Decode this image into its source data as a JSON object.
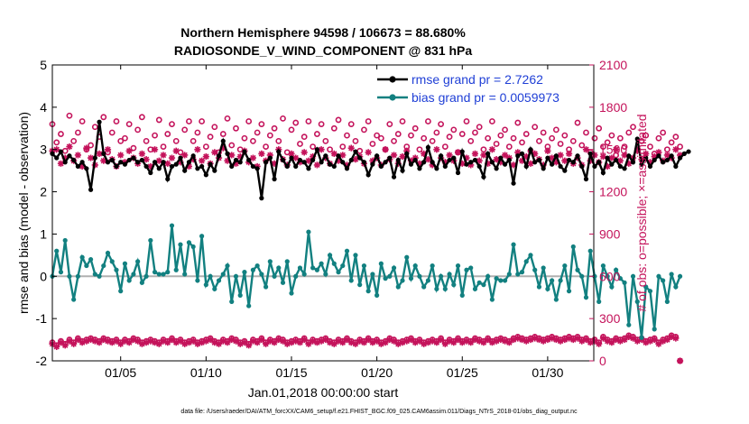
{
  "chart_data": {
    "type": "line",
    "title": "Northern Hemisphere 94598 / 106673 = 88.680%",
    "subtitle": "RADIOSONDE_V_WIND_COMPONENT @ 831 hPa",
    "xlabel": "Jan.01,2018 00:00:00 start",
    "ylabel": "rmse and bias (model - observation)",
    "ylabel_right": "# of obs: o=possible; ×=assimilated",
    "xlim": [
      1,
      32.7
    ],
    "ylim": [
      -2,
      5
    ],
    "ylim_right": [
      0,
      2100
    ],
    "x_ticks": [
      5,
      10,
      15,
      20,
      25,
      30
    ],
    "x_tick_labels": [
      "01/05",
      "01/10",
      "01/15",
      "01/20",
      "01/25",
      "01/30"
    ],
    "y_ticks": [
      -2,
      -1,
      0,
      1,
      2,
      3,
      4,
      5
    ],
    "y_tick_labels": [
      "-2",
      "-1",
      "0",
      "1",
      "2",
      "3",
      "4",
      "5"
    ],
    "y_right_ticks": [
      0,
      300,
      600,
      900,
      1200,
      1500,
      1800,
      2100
    ],
    "y_right_tick_labels": [
      "0",
      "300",
      "600",
      "900",
      "1200",
      "1500",
      "1800",
      "2100"
    ],
    "grid": false,
    "legend_position": "top-right",
    "legend": [
      "rmse grand pr = 2.7262",
      "bias grand pr = 0.0059973"
    ],
    "colors": {
      "rmse": "#000000",
      "bias": "#128080",
      "obs": "#c4135b",
      "zero_line": "#b0b0b0"
    },
    "x_start": 1.0,
    "x_step": 0.25,
    "series": [
      {
        "name": "rmse",
        "axis": "left",
        "values": [
          2.9,
          2.8,
          2.95,
          2.7,
          2.85,
          2.75,
          2.6,
          2.7,
          2.55,
          2.05,
          2.8,
          3.65,
          2.9,
          2.7,
          2.75,
          2.6,
          2.7,
          2.65,
          2.75,
          2.8,
          2.7,
          2.75,
          2.6,
          2.45,
          2.7,
          2.55,
          2.7,
          2.3,
          2.6,
          2.65,
          2.8,
          2.5,
          2.7,
          2.85,
          2.55,
          2.6,
          2.4,
          2.65,
          2.5,
          2.85,
          3.2,
          2.9,
          2.6,
          2.75,
          2.7,
          2.95,
          2.75,
          2.6,
          2.55,
          1.85,
          2.7,
          2.8,
          2.3,
          2.95,
          2.75,
          2.6,
          2.8,
          2.6,
          2.75,
          2.7,
          2.55,
          2.75,
          3.0,
          2.7,
          2.85,
          2.65,
          2.6,
          2.85,
          2.7,
          2.55,
          2.75,
          2.95,
          2.8,
          2.7,
          2.4,
          2.65,
          2.85,
          2.6,
          2.7,
          2.8,
          2.35,
          2.75,
          2.5,
          2.9,
          2.65,
          2.75,
          2.55,
          2.7,
          3.05,
          2.7,
          2.55,
          2.85,
          2.6,
          2.75,
          2.8,
          2.45,
          2.95,
          2.65,
          2.7,
          2.75,
          2.6,
          2.35,
          2.9,
          2.7,
          2.55,
          2.8,
          2.65,
          2.75,
          2.2,
          2.85,
          2.9,
          2.6,
          3.0,
          2.7,
          2.75,
          2.55,
          2.8,
          2.65,
          2.85,
          2.6,
          2.5,
          2.75,
          2.7,
          2.85,
          2.6,
          2.3,
          2.9,
          2.6,
          2.7,
          2.45,
          2.8,
          2.65,
          2.75,
          2.6,
          2.55,
          2.85,
          2.7,
          3.25,
          2.65,
          2.8,
          2.6,
          2.75,
          2.85,
          2.7,
          2.75,
          2.85,
          2.6,
          2.8,
          2.9,
          2.95
        ]
      },
      {
        "name": "bias",
        "axis": "left",
        "values": [
          0.0,
          0.6,
          0.1,
          0.85,
          0.0,
          -0.55,
          0.0,
          0.45,
          0.25,
          0.4,
          0.05,
          0.0,
          0.25,
          0.55,
          0.35,
          0.15,
          -0.35,
          0.3,
          -0.1,
          0.05,
          0.35,
          -0.15,
          0.0,
          0.85,
          0.1,
          0.05,
          0.05,
          0.1,
          1.2,
          0.15,
          0.75,
          0.05,
          0.8,
          0.7,
          -0.1,
          0.95,
          -0.2,
          0.0,
          -0.3,
          -0.1,
          0.05,
          0.25,
          -0.6,
          0.0,
          -0.45,
          0.1,
          -0.7,
          0.15,
          0.25,
          0.05,
          -0.25,
          0.35,
          0.0,
          0.2,
          -0.15,
          0.35,
          -0.4,
          0.0,
          0.2,
          0.05,
          1.05,
          0.2,
          0.15,
          0.3,
          0.05,
          0.5,
          0.3,
          0.1,
          0.25,
          0.6,
          -0.1,
          0.5,
          -0.2,
          0.25,
          -0.35,
          0.05,
          -0.45,
          0.3,
          -0.05,
          0.0,
          0.2,
          -0.25,
          -0.1,
          0.45,
          -0.05,
          0.25,
          0.0,
          -0.25,
          -0.1,
          0.25,
          -0.3,
          0.0,
          -0.3,
          0.05,
          -0.2,
          0.25,
          -0.45,
          0.15,
          0.2,
          -0.3,
          -0.15,
          -0.2,
          0.0,
          -0.55,
          -0.05,
          -0.1,
          -0.1,
          0.05,
          0.75,
          0.05,
          0.1,
          0.35,
          0.5,
          0.15,
          -0.25,
          0.2,
          -0.3,
          -0.1,
          -0.55,
          -0.1,
          0.25,
          -0.35,
          0.7,
          0.15,
          0.0,
          -0.5,
          0.6,
          0.0,
          -0.6,
          0.25,
          0.0,
          -0.25,
          0.15,
          -0.05,
          -0.15,
          -1.15,
          0.0,
          -0.6,
          -1.45,
          -0.25,
          -0.35,
          -1.25,
          0.0,
          -0.1,
          -0.6,
          0.05,
          -0.25,
          0.0
        ]
      },
      {
        "name": "possible obs",
        "axis": "right",
        "marker": "o",
        "values": [
          1680,
          1550,
          1610,
          1490,
          1740,
          1560,
          1620,
          1700,
          1500,
          1530,
          1660,
          1590,
          1730,
          1480,
          1620,
          1700,
          1560,
          1580,
          1680,
          1510,
          1640,
          1730,
          1560,
          1500,
          1600,
          1710,
          1520,
          1610,
          1680,
          1560,
          1480,
          1640,
          1700,
          1560,
          1620,
          1700,
          1520,
          1590,
          1660,
          1480,
          1610,
          1720,
          1530,
          1650,
          1500,
          1580,
          1700,
          1560,
          1620,
          1680,
          1520,
          1600,
          1650,
          1560,
          1720,
          1480,
          1640,
          1690,
          1540,
          1590,
          1700,
          1520,
          1610,
          1680,
          1560,
          1500,
          1650,
          1710,
          1520,
          1600,
          1680,
          1560,
          1490,
          1640,
          1700,
          1540,
          1600,
          1580,
          1500,
          1680,
          1560,
          1610,
          1700,
          1520,
          1600,
          1650,
          1500,
          1580,
          1700,
          1560,
          1620,
          1680,
          1520,
          1590,
          1640,
          1480,
          1610,
          1700,
          1560,
          1620,
          1660,
          1500,
          1580,
          1700,
          1540,
          1600,
          1640,
          1520,
          1580,
          1690,
          1550,
          1610,
          1490,
          1660,
          1560,
          1620,
          1520,
          1580,
          1640,
          1540,
          1600,
          1500,
          1560,
          1690,
          1530,
          1620,
          1480,
          1580,
          1650,
          1520,
          1550,
          1600,
          1460,
          1580,
          1520,
          1620,
          1660,
          1500,
          1560,
          1600,
          1520,
          1470,
          1580,
          1620,
          1500,
          1550,
          1590,
          1520
        ]
      },
      {
        "name": "assimilated obs",
        "axis": "right",
        "marker": "*",
        "values": [
          1490,
          1500,
          1400,
          1440,
          1520,
          1420,
          1460,
          1380,
          1510,
          1440,
          1390,
          1470,
          1420,
          1500,
          1430,
          1380,
          1460,
          1410,
          1490,
          1440,
          1400,
          1470,
          1430,
          1380,
          1500,
          1420,
          1460,
          1400,
          1440,
          1490,
          1410,
          1460,
          1380,
          1430,
          1500,
          1420,
          1450,
          1400,
          1480,
          1440,
          1510,
          1420,
          1460,
          1400,
          1450,
          1490,
          1410,
          1440,
          1380,
          1470,
          1420,
          1460,
          1400,
          1500,
          1430,
          1390,
          1470,
          1440,
          1410,
          1480,
          1420,
          1450,
          1390,
          1500,
          1440,
          1400,
          1470,
          1420,
          1460,
          1390,
          1510,
          1430,
          1450,
          1400,
          1480,
          1420,
          1440,
          1390,
          1500,
          1430,
          1460,
          1400,
          1450,
          1490,
          1420,
          1440,
          1400,
          1470,
          1430,
          1390,
          1500,
          1440,
          1410,
          1460,
          1420,
          1480,
          1400,
          1440,
          1390,
          1470,
          1420,
          1460,
          1400,
          1500,
          1430,
          1410,
          1460,
          1440,
          1390,
          1480,
          1420,
          1450,
          1400,
          1470,
          1430,
          1390,
          1490,
          1440,
          1410,
          1460,
          1420,
          1470,
          1400,
          1440,
          1390,
          1500,
          1420,
          1460,
          1410,
          1450,
          1380,
          1440,
          1500,
          1420,
          1460,
          1400,
          1440,
          1490,
          1430,
          1470,
          1410,
          1450,
          1480,
          1420,
          1460,
          1440,
          1500,
          1460
        ]
      },
      {
        "name": "possible obs (bottom band)",
        "axis": "right",
        "marker": "o",
        "values": [
          130,
          110,
          140,
          120,
          150,
          130,
          160,
          140,
          150,
          160,
          150,
          140,
          160,
          150,
          140,
          150,
          130,
          150,
          140,
          160,
          150,
          130,
          140,
          150,
          140,
          130,
          150,
          140,
          160,
          140,
          150,
          130,
          140,
          150,
          130,
          140,
          150,
          160,
          140,
          130,
          150,
          140,
          160,
          150,
          130,
          140,
          120,
          150,
          140,
          160,
          130,
          150,
          140,
          160,
          150,
          130,
          140,
          150,
          140,
          160,
          130,
          150,
          140,
          150,
          160,
          140,
          130,
          150,
          140,
          160,
          140,
          130,
          150,
          140,
          160,
          140,
          150,
          130,
          140,
          160,
          150,
          130,
          140,
          150,
          160,
          140,
          150,
          130,
          140,
          150,
          140,
          160,
          130,
          150,
          140,
          160,
          140,
          150,
          140,
          160,
          150,
          140,
          160,
          140,
          150,
          160,
          150,
          140,
          160,
          170,
          160,
          150,
          160,
          170,
          160,
          150,
          160,
          170,
          160,
          150,
          160,
          170,
          160,
          170,
          150,
          160,
          140,
          150,
          130,
          170,
          150,
          140,
          160,
          150,
          160,
          180,
          170,
          150,
          160,
          140,
          150,
          160,
          130,
          150,
          160,
          180,
          170,
          0
        ]
      },
      {
        "name": "assimilated obs (bottom band)",
        "axis": "right",
        "marker": "*",
        "values": [
          120,
          100,
          130,
          110,
          140,
          120,
          150,
          130,
          140,
          150,
          140,
          130,
          150,
          140,
          130,
          140,
          120,
          140,
          130,
          150,
          140,
          120,
          130,
          140,
          130,
          120,
          140,
          130,
          150,
          130,
          140,
          120,
          130,
          140,
          120,
          130,
          140,
          150,
          130,
          120,
          140,
          130,
          150,
          140,
          120,
          130,
          110,
          140,
          130,
          150,
          120,
          140,
          130,
          150,
          140,
          120,
          130,
          140,
          130,
          150,
          120,
          140,
          130,
          140,
          150,
          130,
          120,
          140,
          130,
          150,
          130,
          120,
          140,
          130,
          150,
          130,
          140,
          120,
          130,
          150,
          140,
          120,
          130,
          140,
          150,
          130,
          140,
          120,
          130,
          140,
          130,
          150,
          120,
          140,
          130,
          150,
          130,
          140,
          130,
          150,
          140,
          130,
          150,
          130,
          140,
          150,
          140,
          130,
          150,
          160,
          150,
          140,
          150,
          160,
          150,
          140,
          150,
          160,
          150,
          140,
          150,
          160,
          150,
          160,
          140,
          150,
          130,
          140,
          120,
          160,
          140,
          130,
          150,
          140,
          150,
          170,
          160,
          140,
          150,
          130,
          140,
          150,
          120,
          140,
          150,
          170,
          160,
          0
        ]
      }
    ]
  },
  "footer": "data file: /Users/raeder/DAI/ATM_forcXX/CAM6_setup/f.e21.FHIST_BGC.f09_025.CAM6assim.011/Diags_NTrS_2018-01/obs_diag_output.nc"
}
